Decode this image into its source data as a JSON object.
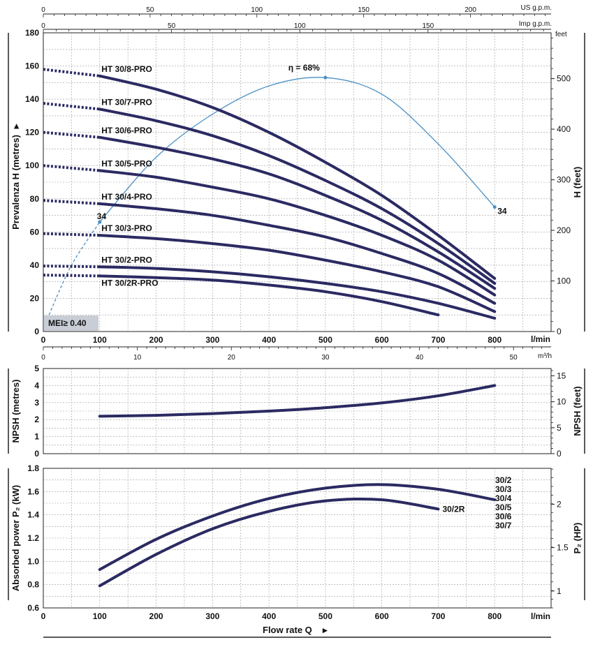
{
  "chart_data": [
    {
      "type": "line",
      "name": "head",
      "x_label_units": "l/min",
      "ylabel": "Prevalenza H (metres)",
      "ylabel_arrow": "▸",
      "y2label": "H (feet)",
      "y2_units_label": "feet",
      "top_axis_1_label": "US g.p.m.",
      "top_axis_2_label": "Imp g.p.m.",
      "bottom_axis_2_label": "m³/h",
      "xlim": [
        0,
        900
      ],
      "ylim": [
        0,
        180
      ],
      "y2lim": [
        0,
        590.55
      ],
      "x_ticks": [
        "0",
        "100",
        "200",
        "300",
        "400",
        "500",
        "600",
        "700",
        "800"
      ],
      "y_ticks": [
        "0",
        "20",
        "40",
        "60",
        "80",
        "100",
        "120",
        "140",
        "160",
        "180"
      ],
      "y2_ticks": [
        "0",
        "100",
        "200",
        "300",
        "400",
        "500"
      ],
      "us_gpm_ticks": [
        "0",
        "50",
        "100",
        "150",
        "200"
      ],
      "imp_gpm_ticks": [
        "0",
        "50",
        "100",
        "150"
      ],
      "m3h_ticks": [
        "0",
        "10",
        "20",
        "30",
        "40",
        "50"
      ],
      "grid": true,
      "series": [
        {
          "name": "HT 30/8-PRO",
          "dotted": [
            [
              0,
              158
            ],
            [
              100,
              154
            ]
          ],
          "x": [
            100,
            200,
            300,
            400,
            500,
            600,
            700,
            800
          ],
          "y": [
            154,
            146,
            135,
            120,
            102,
            82,
            58,
            32
          ]
        },
        {
          "name": "HT 30/7-PRO",
          "dotted": [
            [
              0,
              137.5
            ],
            [
              100,
              134
            ]
          ],
          "x": [
            100,
            200,
            300,
            400,
            500,
            600,
            700,
            800
          ],
          "y": [
            134,
            127,
            118,
            106,
            91,
            74,
            53,
            29
          ]
        },
        {
          "name": "HT 30/6-PRO",
          "dotted": [
            [
              0,
              120
            ],
            [
              100,
              117
            ]
          ],
          "x": [
            100,
            200,
            300,
            400,
            500,
            600,
            700,
            800
          ],
          "y": [
            117,
            111,
            104,
            95,
            82,
            67,
            48,
            26
          ]
        },
        {
          "name": "HT 30/5-PRO",
          "dotted": [
            [
              0,
              100
            ],
            [
              100,
              97
            ]
          ],
          "x": [
            100,
            200,
            300,
            400,
            500,
            600,
            700,
            800
          ],
          "y": [
            97,
            93,
            87,
            80,
            70,
            58,
            43,
            22
          ]
        },
        {
          "name": "HT 30/4-PRO",
          "dotted": [
            [
              0,
              79
            ],
            [
              100,
              77
            ]
          ],
          "x": [
            100,
            200,
            300,
            400,
            500,
            600,
            700,
            800
          ],
          "y": [
            77,
            74,
            70,
            64,
            57,
            47,
            35,
            17
          ]
        },
        {
          "name": "HT 30/3-PRO",
          "dotted": [
            [
              0,
              59
            ],
            [
              100,
              58
            ]
          ],
          "x": [
            100,
            200,
            300,
            400,
            500,
            600,
            700,
            800
          ],
          "y": [
            58,
            56,
            53,
            49,
            43,
            36,
            27,
            12
          ]
        },
        {
          "name": "HT 30/2-PRO",
          "dotted": [
            [
              0,
              39.5
            ],
            [
              100,
              39
            ]
          ],
          "x": [
            100,
            200,
            300,
            400,
            500,
            600,
            700,
            800
          ],
          "y": [
            39,
            38,
            36,
            33,
            29,
            24,
            17,
            8
          ]
        },
        {
          "name": "HT 30/2R-PRO",
          "dotted": [
            [
              0,
              34
            ],
            [
              100,
              33.5
            ]
          ],
          "x": [
            100,
            200,
            300,
            400,
            500,
            600,
            700
          ],
          "y": [
            33.5,
            32.5,
            31,
            28,
            24,
            18,
            10
          ]
        }
      ],
      "efficiency": {
        "label": "η = 68%",
        "peak_label": "68%",
        "dashed": {
          "x": [
            10,
            50,
            100
          ],
          "y": [
            10,
            40,
            66
          ]
        },
        "solid": {
          "x": [
            100,
            200,
            300,
            400,
            500,
            600,
            700,
            800
          ],
          "y": [
            66,
            105,
            131,
            148,
            153,
            143,
            113,
            75
          ]
        },
        "marker_label": "34",
        "markers": [
          {
            "x": 100,
            "y": 66
          },
          {
            "x": 500,
            "y": 153
          },
          {
            "x": 800,
            "y": 75
          }
        ]
      },
      "badge": "MEI≥ 0.40"
    },
    {
      "type": "line",
      "name": "npsh",
      "ylabel": "NPSH (metres)",
      "y2label": "NPSH (feet)",
      "xlim": [
        0,
        900
      ],
      "ylim": [
        0,
        5
      ],
      "y2lim": [
        0,
        16.4
      ],
      "y_ticks": [
        "0",
        "1",
        "2",
        "3",
        "4",
        "5"
      ],
      "y2_ticks": [
        "0",
        "5",
        "10",
        "15"
      ],
      "grid": true,
      "series": [
        {
          "x": [
            100,
            200,
            300,
            400,
            500,
            600,
            700,
            800
          ],
          "y": [
            2.2,
            2.25,
            2.35,
            2.5,
            2.7,
            2.98,
            3.4,
            4.0
          ]
        }
      ]
    },
    {
      "type": "line",
      "name": "power",
      "ylabel": "Absorbed power P₂ (kW)",
      "y2label": "P₂ (HP)",
      "xlabel": "Flow rate Q",
      "xlabel_arrow": "▸",
      "x_label_units": "l/min",
      "xlim": [
        0,
        900
      ],
      "ylim": [
        0.6,
        1.8
      ],
      "y2lim": [
        0.805,
        2.414
      ],
      "x_ticks": [
        "0",
        "100",
        "200",
        "300",
        "400",
        "500",
        "600",
        "700",
        "800"
      ],
      "y_ticks": [
        "0.6",
        "0.8",
        "1.0",
        "1.2",
        "1.4",
        "1.6",
        "1.8"
      ],
      "y2_ticks": [
        "1",
        "1.5",
        "2"
      ],
      "grid": true,
      "series": [
        {
          "name": "30/2 30/3 30/4 30/5 30/6 30/7",
          "x": [
            100,
            200,
            300,
            400,
            500,
            600,
            700,
            800
          ],
          "y": [
            0.93,
            1.19,
            1.39,
            1.54,
            1.63,
            1.66,
            1.62,
            1.53
          ]
        },
        {
          "name": "30/2R",
          "x": [
            100,
            200,
            300,
            400,
            500,
            600,
            700
          ],
          "y": [
            0.79,
            1.06,
            1.28,
            1.43,
            1.52,
            1.53,
            1.45
          ]
        }
      ],
      "legend_labels": [
        "30/2",
        "30/3",
        "30/4",
        "30/5",
        "30/6",
        "30/7"
      ],
      "curve_label": "30/2R"
    }
  ]
}
